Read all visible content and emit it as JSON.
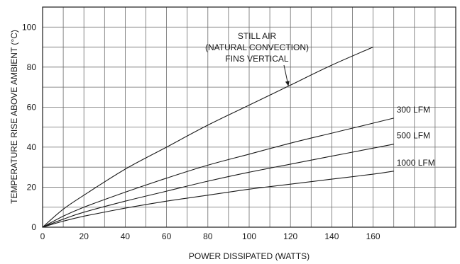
{
  "chart_data": {
    "type": "line",
    "xlabel": "POWER DISSIPATED (WATTS)",
    "ylabel": "TEMPERATURE RISE ABOVE AMBIENT (°C)",
    "xlim": [
      0,
      200
    ],
    "ylim": [
      0,
      110
    ],
    "x_ticks": [
      0,
      20,
      40,
      60,
      80,
      100,
      120,
      140,
      160
    ],
    "y_ticks": [
      0,
      20,
      40,
      60,
      80,
      100
    ],
    "grid": true,
    "series": [
      {
        "name": "STILL AIR (NATURAL CONVECTION) FINS VERTICAL",
        "x": [
          0,
          10,
          20,
          40,
          60,
          80,
          100,
          120,
          140,
          160
        ],
        "y": [
          0,
          9,
          16,
          29,
          40,
          51,
          61,
          71,
          81,
          90
        ]
      },
      {
        "name": "300 LFM",
        "x": [
          0,
          10,
          20,
          40,
          60,
          80,
          100,
          120,
          140,
          160,
          170
        ],
        "y": [
          0,
          5.5,
          10,
          17.5,
          24.5,
          31,
          36.5,
          42,
          47,
          52,
          54.5
        ]
      },
      {
        "name": "500 LFM",
        "x": [
          0,
          10,
          20,
          40,
          60,
          80,
          100,
          120,
          140,
          160,
          170
        ],
        "y": [
          0,
          4,
          7.5,
          13,
          18,
          23,
          27.5,
          31.5,
          35.5,
          39.5,
          41.5
        ]
      },
      {
        "name": "1000 LFM",
        "x": [
          0,
          10,
          20,
          40,
          60,
          80,
          100,
          120,
          140,
          160,
          170
        ],
        "y": [
          0,
          3,
          5.5,
          9.5,
          13,
          16,
          19,
          21.5,
          24,
          26.5,
          28
        ]
      }
    ],
    "annotation": {
      "lines": [
        "STILL AIR",
        "(NATURAL CONVECTION)",
        "FINS VERTICAL"
      ],
      "arrow_to": {
        "x": 119,
        "y": 70.5
      }
    }
  }
}
